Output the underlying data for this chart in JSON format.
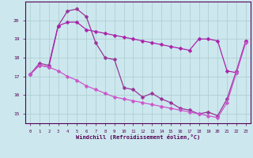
{
  "xlabel": "Windchill (Refroidissement éolien,°C)",
  "bg_color": "#cce8ee",
  "grid_color": "#aacccc",
  "xlim": [
    -0.5,
    23.5
  ],
  "ylim": [
    14.5,
    21.0
  ],
  "yticks": [
    15,
    16,
    17,
    18,
    19,
    20
  ],
  "xticks": [
    0,
    1,
    2,
    3,
    4,
    5,
    6,
    7,
    8,
    9,
    10,
    11,
    12,
    13,
    14,
    15,
    16,
    17,
    18,
    19,
    20,
    21,
    22,
    23
  ],
  "series1_x": [
    0,
    1,
    2,
    3,
    4,
    5,
    6,
    7,
    8,
    9,
    10,
    11,
    12,
    13,
    14,
    15,
    16,
    17,
    18,
    19,
    20,
    21,
    22,
    23
  ],
  "series1_y": [
    17.1,
    17.7,
    17.6,
    19.7,
    20.5,
    20.6,
    20.2,
    18.8,
    18.0,
    17.9,
    16.4,
    16.3,
    15.9,
    16.1,
    15.8,
    15.6,
    15.3,
    15.2,
    15.0,
    15.1,
    14.9,
    15.8,
    17.3,
    18.9
  ],
  "series2_x": [
    0,
    1,
    2,
    3,
    4,
    5,
    6,
    7,
    8,
    9,
    10,
    11,
    12,
    13,
    14,
    15,
    16,
    17,
    18,
    19,
    20,
    21,
    22,
    23
  ],
  "series2_y": [
    17.1,
    17.6,
    17.5,
    19.7,
    19.9,
    19.9,
    19.5,
    19.4,
    19.3,
    19.2,
    19.1,
    19.0,
    18.9,
    18.8,
    18.7,
    18.6,
    18.5,
    18.4,
    19.0,
    19.0,
    18.9,
    17.3,
    17.2,
    18.9
  ],
  "series3_x": [
    0,
    1,
    2,
    3,
    4,
    5,
    6,
    7,
    8,
    9,
    10,
    11,
    12,
    13,
    14,
    15,
    16,
    17,
    18,
    19,
    20,
    21,
    22,
    23
  ],
  "series3_y": [
    17.1,
    17.6,
    17.5,
    17.3,
    17.0,
    16.8,
    16.5,
    16.3,
    16.1,
    15.9,
    15.8,
    15.7,
    15.6,
    15.5,
    15.4,
    15.3,
    15.2,
    15.1,
    15.0,
    14.9,
    14.8,
    15.6,
    17.2,
    18.8
  ]
}
